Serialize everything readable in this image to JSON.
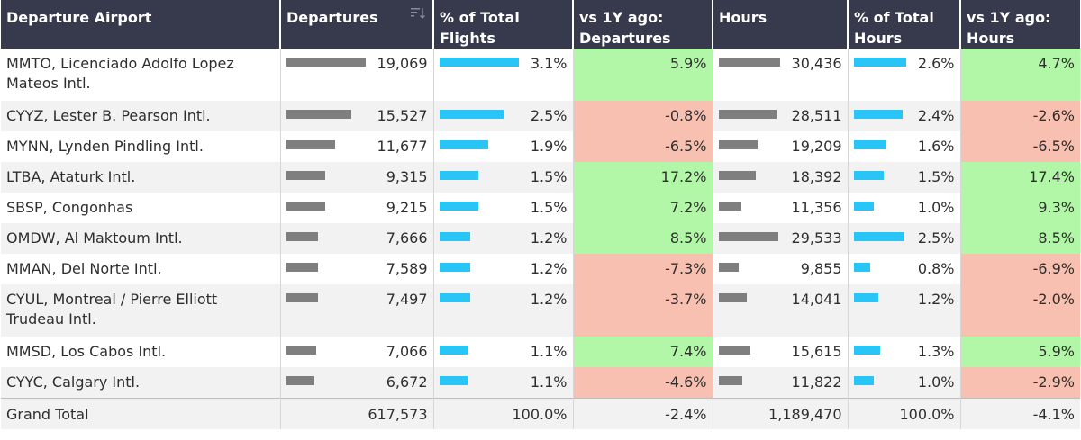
{
  "headers": [
    "Departure Airport",
    "Departures",
    "% of Total Flights",
    "vs 1Y ago: Departures",
    "Hours",
    "% of Total Hours",
    "vs 1Y ago: Hours"
  ],
  "colors": {
    "header_bg": "#373a4d",
    "positive": "#b2f7a7",
    "negative": "#f8c0b0",
    "bar_gray": "#7f7f7f",
    "bar_blue": "#29c5f6"
  },
  "sort_icon": "sort-descending-icon",
  "rows": [
    {
      "airport": "MMTO, Licenciado Adolfo Lopez Mateos Intl.",
      "departures": "19,069",
      "pct_flights": "3.1%",
      "vs_dep": "5.9%",
      "hours": "30,436",
      "pct_hours": "2.6%",
      "vs_hours": "4.7%"
    },
    {
      "airport": "CYYZ, Lester B. Pearson Intl.",
      "departures": "15,527",
      "pct_flights": "2.5%",
      "vs_dep": "-0.8%",
      "hours": "28,511",
      "pct_hours": "2.4%",
      "vs_hours": "-2.6%"
    },
    {
      "airport": "MYNN, Lynden Pindling Intl.",
      "departures": "11,677",
      "pct_flights": "1.9%",
      "vs_dep": "-6.5%",
      "hours": "19,209",
      "pct_hours": "1.6%",
      "vs_hours": "-6.5%"
    },
    {
      "airport": "LTBA, Ataturk Intl.",
      "departures": "9,315",
      "pct_flights": "1.5%",
      "vs_dep": "17.2%",
      "hours": "18,392",
      "pct_hours": "1.5%",
      "vs_hours": "17.4%"
    },
    {
      "airport": "SBSP, Congonhas",
      "departures": "9,215",
      "pct_flights": "1.5%",
      "vs_dep": "7.2%",
      "hours": "11,356",
      "pct_hours": "1.0%",
      "vs_hours": "9.3%"
    },
    {
      "airport": "OMDW, Al Maktoum Intl.",
      "departures": "7,666",
      "pct_flights": "1.2%",
      "vs_dep": "8.5%",
      "hours": "29,533",
      "pct_hours": "2.5%",
      "vs_hours": "8.5%"
    },
    {
      "airport": "MMAN, Del Norte Intl.",
      "departures": "7,589",
      "pct_flights": "1.2%",
      "vs_dep": "-7.3%",
      "hours": "9,855",
      "pct_hours": "0.8%",
      "vs_hours": "-6.9%"
    },
    {
      "airport": "CYUL, Montreal / Pierre Elliott Trudeau Intl.",
      "departures": "7,497",
      "pct_flights": "1.2%",
      "vs_dep": "-3.7%",
      "hours": "14,041",
      "pct_hours": "1.2%",
      "vs_hours": "-2.0%"
    },
    {
      "airport": "MMSD, Los Cabos Intl.",
      "departures": "7,066",
      "pct_flights": "1.1%",
      "vs_dep": "7.4%",
      "hours": "15,615",
      "pct_hours": "1.3%",
      "vs_hours": "5.9%"
    },
    {
      "airport": "CYYC, Calgary Intl.",
      "departures": "6,672",
      "pct_flights": "1.1%",
      "vs_dep": "-4.6%",
      "hours": "11,822",
      "pct_hours": "1.0%",
      "vs_hours": "-2.9%"
    }
  ],
  "total": {
    "label": "Grand Total",
    "departures": "617,573",
    "pct_flights": "100.0%",
    "vs_dep": "-2.4%",
    "hours": "1,189,470",
    "pct_hours": "100.0%",
    "vs_hours": "-4.1%"
  }
}
